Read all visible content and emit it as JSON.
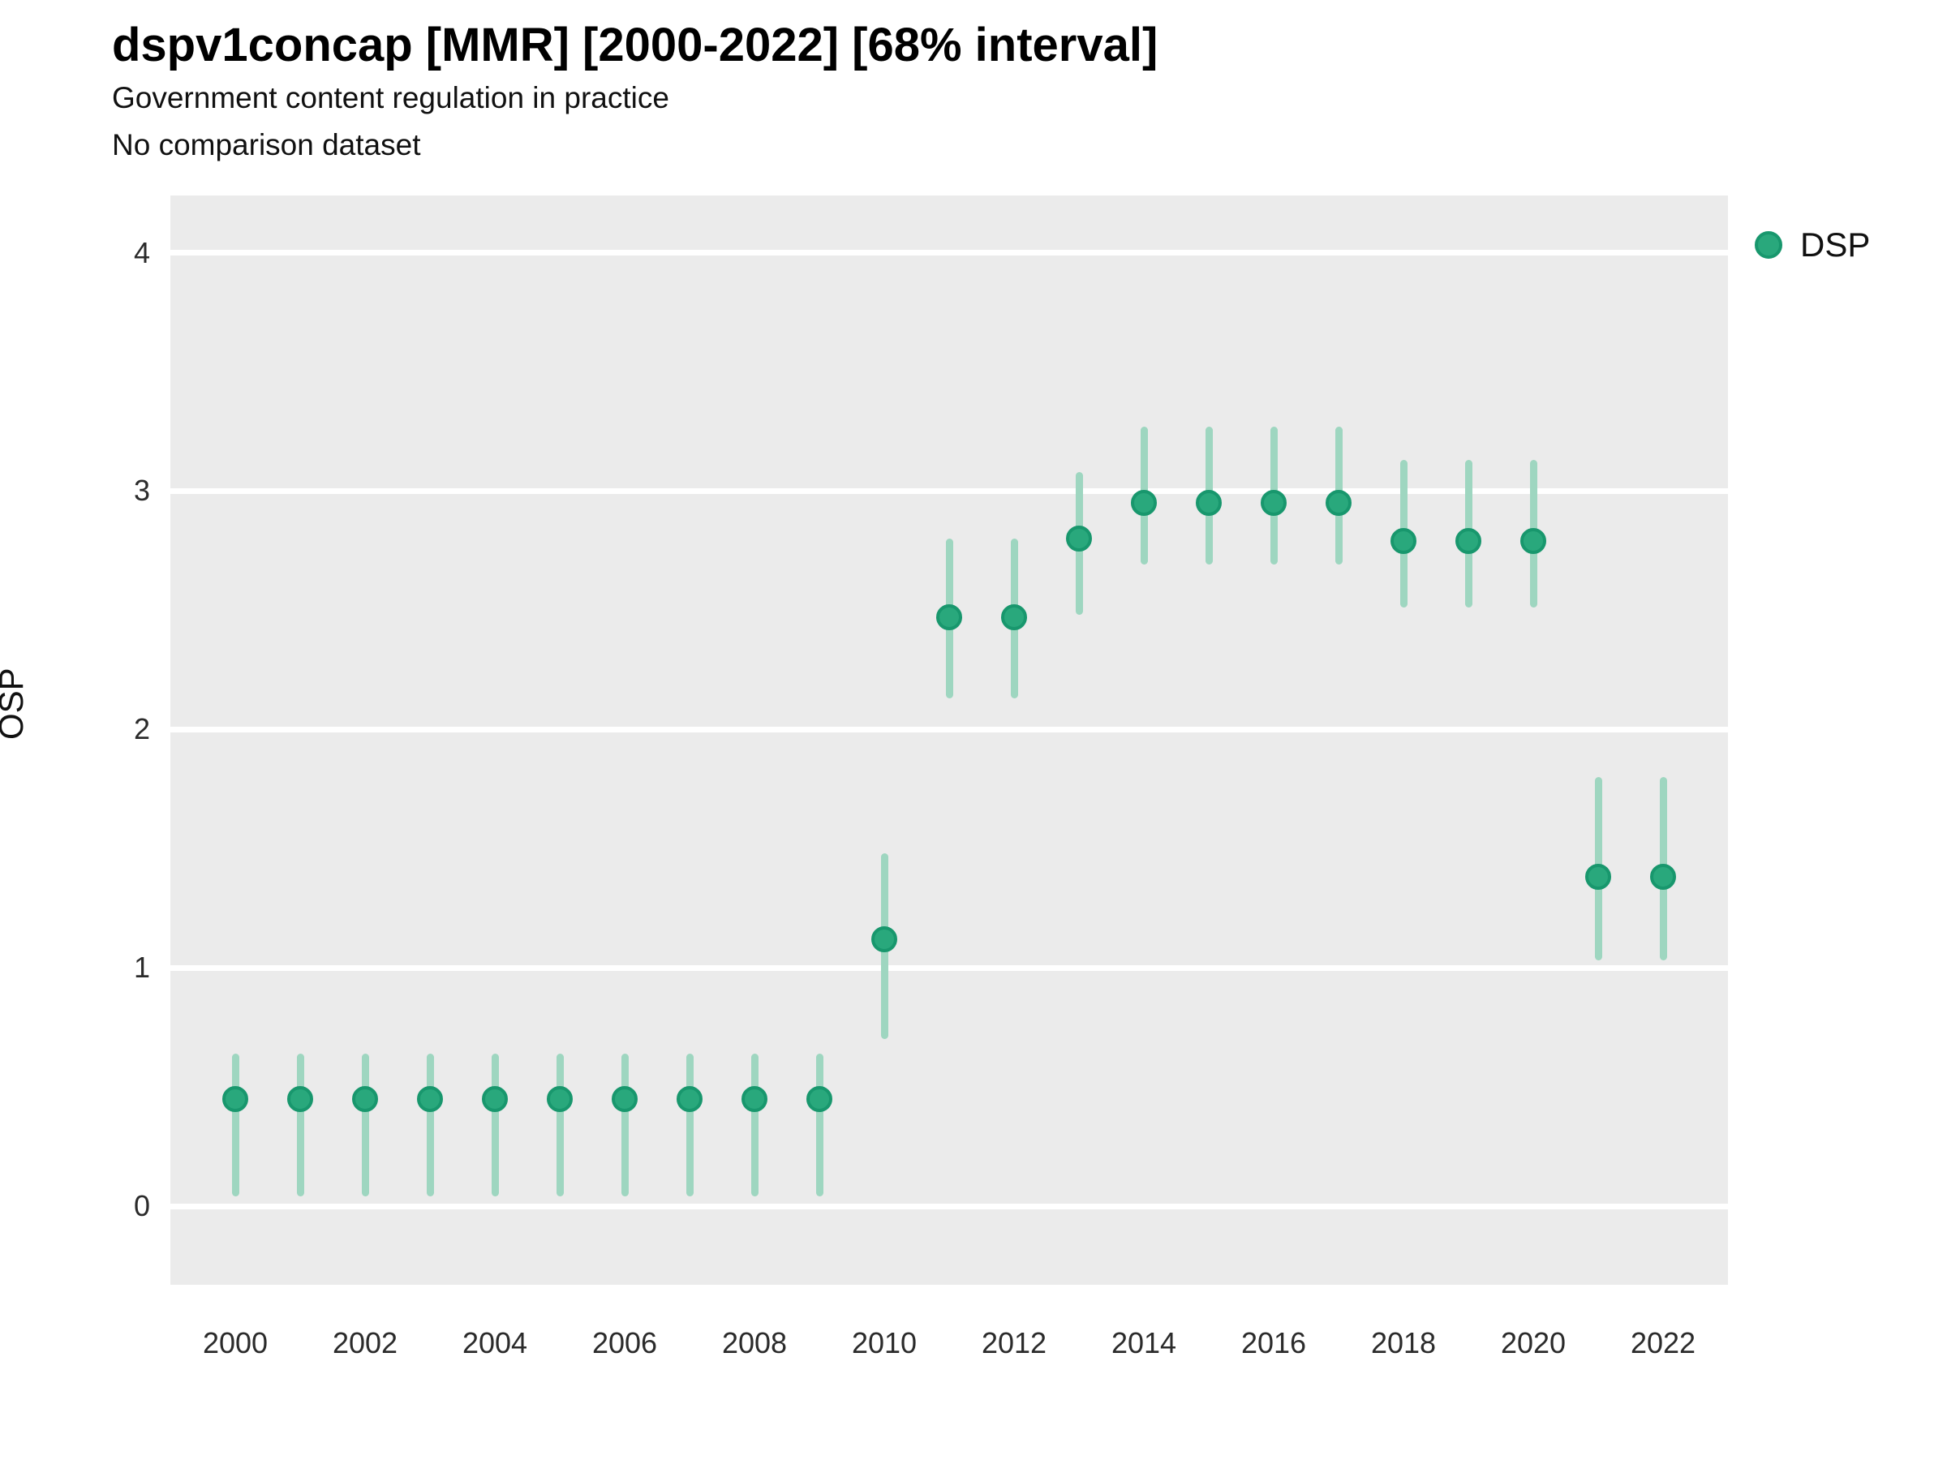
{
  "header": {
    "title": "dspv1concap [MMR] [2000-2022] [68% interval]",
    "subtitle1": "Government content regulation in practice",
    "subtitle2": "No comparison dataset"
  },
  "legend": {
    "label": "DSP"
  },
  "axes": {
    "ylabel": "OSP"
  },
  "colors": {
    "point_fill": "#29a87c",
    "point_stroke": "#18976d",
    "interval_line": "#9ed6c0",
    "panel_background": "#ebebeb",
    "gridline": "#ffffff"
  },
  "chart_data": {
    "type": "pointrange",
    "title": "dspv1concap [MMR] [2000-2022] [68% interval]",
    "subtitle": "Government content regulation in practice",
    "note": "No comparison dataset",
    "xlabel": "",
    "ylabel": "OSP",
    "legend_entries": [
      "DSP"
    ],
    "legend_position": "right",
    "grid": "horizontal-major-only",
    "interval": "68%",
    "ylim": [
      -0.33,
      4.24
    ],
    "yticks": [
      0,
      1,
      2,
      3,
      4
    ],
    "xticks": [
      2000,
      2002,
      2004,
      2006,
      2008,
      2010,
      2012,
      2014,
      2016,
      2018,
      2020,
      2022
    ],
    "x": [
      2000,
      2001,
      2002,
      2003,
      2004,
      2005,
      2006,
      2007,
      2008,
      2009,
      2010,
      2011,
      2012,
      2013,
      2014,
      2015,
      2016,
      2017,
      2018,
      2019,
      2020,
      2021,
      2022
    ],
    "series": [
      {
        "name": "DSP",
        "est": [
          0.45,
          0.45,
          0.45,
          0.45,
          0.45,
          0.45,
          0.45,
          0.45,
          0.45,
          0.45,
          1.12,
          2.47,
          2.47,
          2.8,
          2.95,
          2.95,
          2.95,
          2.95,
          2.79,
          2.79,
          2.79,
          1.38,
          1.38
        ],
        "lo": [
          0.04,
          0.04,
          0.04,
          0.04,
          0.04,
          0.04,
          0.04,
          0.04,
          0.04,
          0.04,
          0.7,
          2.13,
          2.13,
          2.48,
          2.69,
          2.69,
          2.69,
          2.69,
          2.51,
          2.51,
          2.51,
          1.03,
          1.03
        ],
        "hi": [
          0.64,
          0.64,
          0.64,
          0.64,
          0.64,
          0.64,
          0.64,
          0.64,
          0.64,
          0.64,
          1.48,
          2.8,
          2.8,
          3.08,
          3.27,
          3.27,
          3.27,
          3.27,
          3.13,
          3.13,
          3.13,
          1.8,
          1.8
        ]
      }
    ]
  }
}
